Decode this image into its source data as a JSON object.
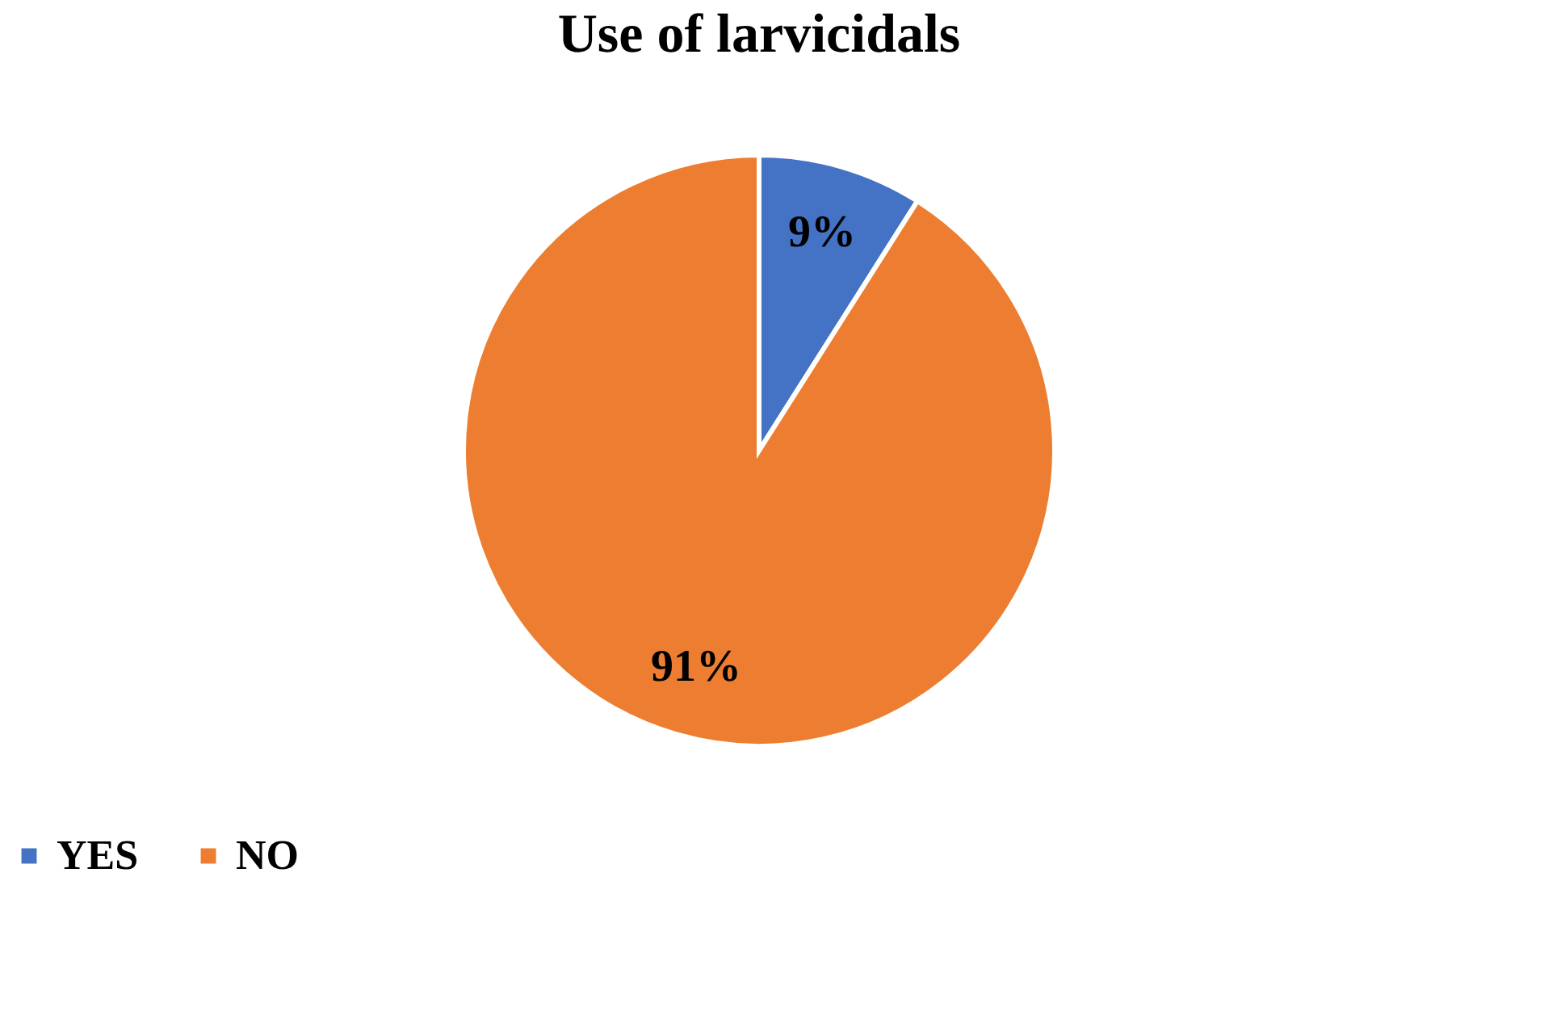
{
  "chart_data": {
    "type": "pie",
    "title": "Use of larvicidals",
    "categories": [
      "YES",
      "NO"
    ],
    "values": [
      9,
      91
    ],
    "colors": [
      "#4472c4",
      "#ed7d31"
    ],
    "value_labels": [
      "9%",
      "91%"
    ],
    "legend": "bottom"
  }
}
